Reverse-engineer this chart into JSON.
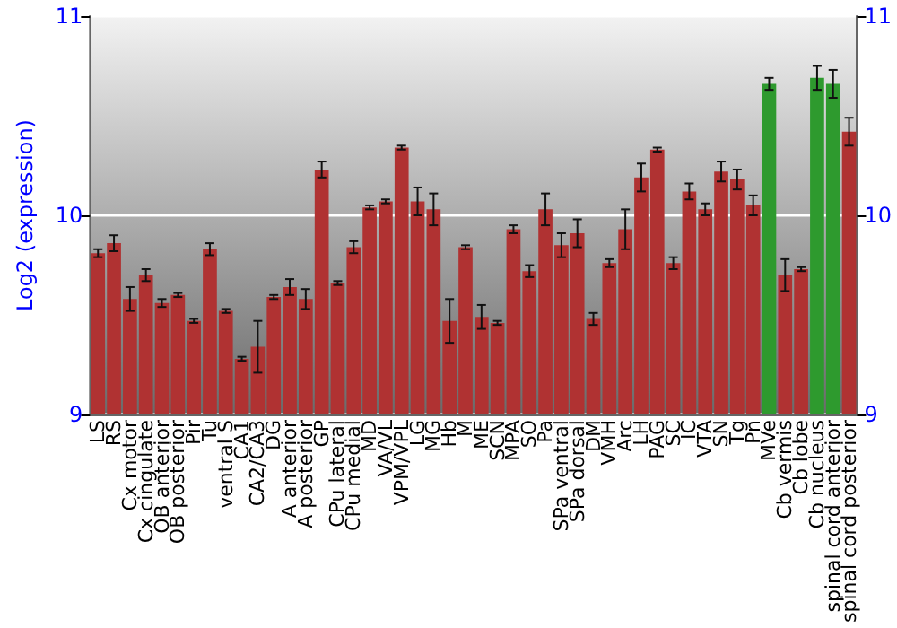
{
  "chart_data": {
    "type": "bar",
    "ylabel": "Log2 (expression)",
    "categories": [
      "LS",
      "RS",
      "Cx motor",
      "Cx cingulate",
      "OB anterior",
      "OB posterior",
      "Pir",
      "Tu",
      "ventral S",
      "CA1",
      "CA2/CA3",
      "DG",
      "A anterior",
      "A posterior",
      "GP",
      "CPu lateral",
      "CPu medial",
      "MD",
      "VA/VL",
      "VPM/VPL",
      "LG",
      "MG",
      "Hb",
      "M",
      "ME",
      "SCN",
      "MPA",
      "SO",
      "Pa",
      "SPa ventral",
      "SPa dorsal",
      "DM",
      "VMH",
      "Arc",
      "LH",
      "PAG",
      "SC",
      "IC",
      "VTA",
      "SN",
      "Tg",
      "Pn",
      "MVe",
      "Cb vermis",
      "Cb lobe",
      "Cb nucleus",
      "spinal cord anterior",
      "spinal cord posterior"
    ],
    "values": [
      9.81,
      9.86,
      9.58,
      9.7,
      9.56,
      9.6,
      9.47,
      9.83,
      9.52,
      9.28,
      9.34,
      9.59,
      9.64,
      9.58,
      10.23,
      9.66,
      9.84,
      10.04,
      10.07,
      10.34,
      10.07,
      10.03,
      9.47,
      9.84,
      9.49,
      9.46,
      9.93,
      9.72,
      10.03,
      9.85,
      9.91,
      9.48,
      9.76,
      9.93,
      10.19,
      10.33,
      9.76,
      10.12,
      10.03,
      10.22,
      10.18,
      10.05,
      10.66,
      9.7,
      9.73,
      10.69,
      10.66,
      10.42
    ],
    "errors": [
      0.02,
      0.04,
      0.06,
      0.03,
      0.02,
      0.01,
      0.01,
      0.03,
      0.01,
      0.01,
      0.13,
      0.01,
      0.04,
      0.05,
      0.04,
      0.01,
      0.03,
      0.01,
      0.01,
      0.01,
      0.07,
      0.08,
      0.11,
      0.01,
      0.06,
      0.01,
      0.02,
      0.03,
      0.08,
      0.06,
      0.07,
      0.03,
      0.02,
      0.1,
      0.07,
      0.01,
      0.03,
      0.04,
      0.03,
      0.05,
      0.05,
      0.05,
      0.03,
      0.08,
      0.01,
      0.06,
      0.07,
      0.07
    ],
    "colors": [
      "#b03232",
      "#b03232",
      "#b03232",
      "#b03232",
      "#b03232",
      "#b03232",
      "#b03232",
      "#b03232",
      "#b03232",
      "#b03232",
      "#b03232",
      "#b03232",
      "#b03232",
      "#b03232",
      "#b03232",
      "#b03232",
      "#b03232",
      "#b03232",
      "#b03232",
      "#b03232",
      "#b03232",
      "#b03232",
      "#b03232",
      "#b03232",
      "#b03232",
      "#b03232",
      "#b03232",
      "#b03232",
      "#b03232",
      "#b03232",
      "#b03232",
      "#b03232",
      "#b03232",
      "#b03232",
      "#b03232",
      "#b03232",
      "#b03232",
      "#b03232",
      "#b03232",
      "#b03232",
      "#b03232",
      "#b03232",
      "#2e9a2e",
      "#b03232",
      "#b03232",
      "#2e9a2e",
      "#2e9a2e",
      "#b03232"
    ],
    "ylim": [
      9,
      11
    ],
    "yticks": [
      9,
      10,
      11
    ],
    "y2lim": [
      9,
      11
    ],
    "y2ticks": [
      9,
      10,
      11
    ],
    "grid": "y"
  }
}
